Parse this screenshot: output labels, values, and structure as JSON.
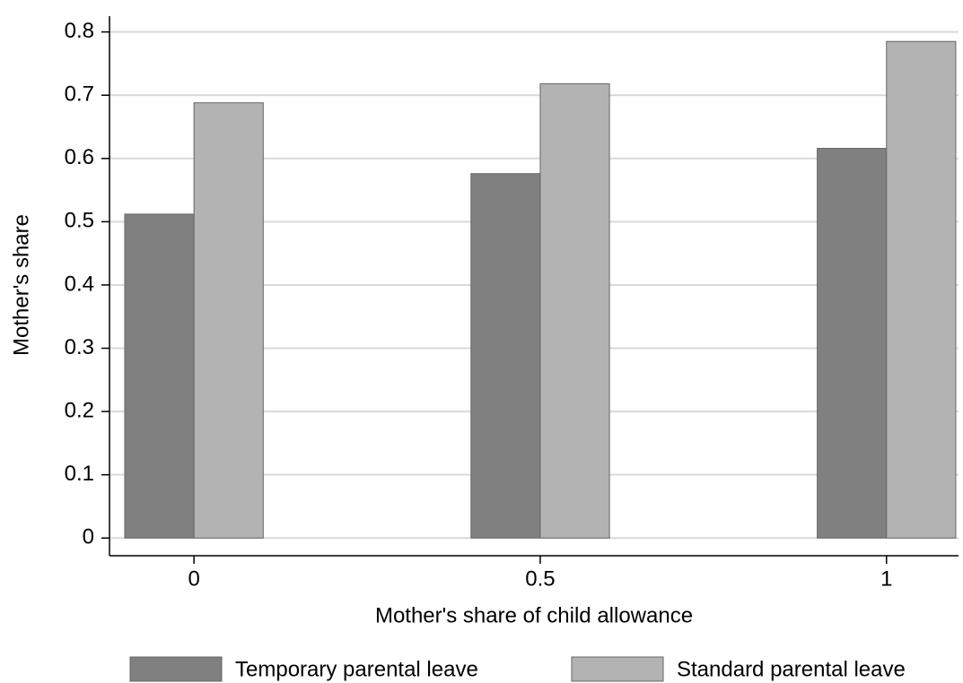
{
  "chart_data": {
    "type": "bar",
    "x_label": "Mother's share of child allowance",
    "y_label": "Mother's share",
    "x": [
      0,
      0.5,
      1
    ],
    "xlim": [
      -0.122,
      1.104
    ],
    "xticks": [
      0,
      0.5,
      1
    ],
    "ylim": [
      -0.028,
      0.825
    ],
    "yticks": [
      0,
      0.1,
      0.2,
      0.3,
      0.4,
      0.5,
      0.6,
      0.7,
      0.8
    ],
    "grid": true,
    "legend": "bottom",
    "series": [
      {
        "name": "Temporary parental leave",
        "color": "#808080",
        "values": [
          0.512,
          0.576,
          0.616
        ]
      },
      {
        "name": "Standard parental leave",
        "color": "#b3b3b3",
        "values": [
          0.688,
          0.718,
          0.785
        ]
      }
    ]
  }
}
